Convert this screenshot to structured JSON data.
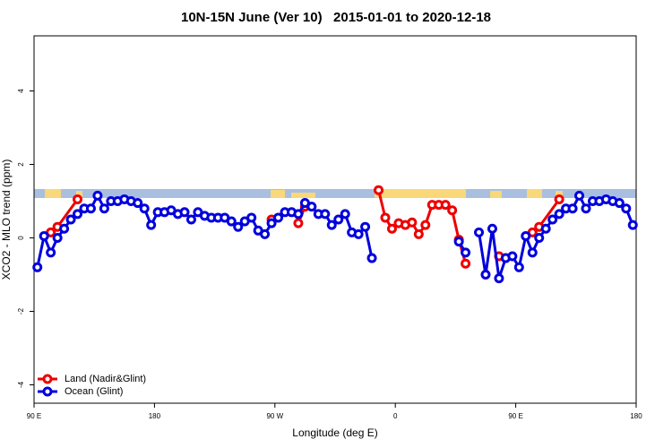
{
  "chart_data": {
    "type": "line",
    "title": "10N-15N June (Ver 10)   2015-01-01 to 2020-12-18",
    "x_label": "Longitude (deg E)",
    "y_label": "XCO2 - MLO trend (ppm)",
    "xlim": [
      90,
      540
    ],
    "ylim": [
      -4.5,
      5.5
    ],
    "xticks": [
      {
        "value": 90,
        "label": "90 E"
      },
      {
        "value": 180,
        "label": "180"
      },
      {
        "value": 270,
        "label": "90 W"
      },
      {
        "value": 360,
        "label": "0"
      },
      {
        "value": 450,
        "label": "90 E"
      },
      {
        "value": 540,
        "label": "180"
      }
    ],
    "yticks": [
      -4,
      -2,
      0,
      2,
      4
    ],
    "legend": "bottom-left",
    "series": [
      {
        "name": "Land (Nadir&Glint)",
        "color": "#ee0000",
        "x": [
          102.5,
          107.5,
          122.5,
          127.5,
          267.5,
          272.5,
          287.5,
          292.5,
          297.5,
          347.5,
          352.5,
          357.5,
          362.5,
          367.5,
          372.5,
          377.5,
          382.5,
          387.5,
          392.5,
          397.5,
          402.5,
          407.5,
          412.5,
          417.5,
          437.5,
          442.5,
          462.5,
          467.5,
          482.5
        ],
        "values": [
          0.15,
          0.3,
          1.05,
          null,
          0.5,
          null,
          0.4,
          0.85,
          null,
          1.3,
          0.55,
          0.25,
          0.4,
          0.35,
          0.42,
          0.1,
          0.35,
          0.9,
          0.9,
          0.9,
          0.75,
          -0.05,
          -0.7,
          null,
          -0.5,
          null,
          0.15,
          0.3,
          1.05
        ]
      },
      {
        "name": "Ocean (Glint)",
        "color": "#0000dd",
        "x": [
          92.5,
          97.5,
          102.5,
          107.5,
          112.5,
          117.5,
          122.5,
          127.5,
          132.5,
          137.5,
          142.5,
          147.5,
          152.5,
          157.5,
          162.5,
          167.5,
          172.5,
          177.5,
          182.5,
          187.5,
          192.5,
          197.5,
          202.5,
          207.5,
          212.5,
          217.5,
          222.5,
          227.5,
          232.5,
          237.5,
          242.5,
          247.5,
          252.5,
          257.5,
          262.5,
          267.5,
          272.5,
          277.5,
          282.5,
          287.5,
          292.5,
          297.5,
          302.5,
          307.5,
          312.5,
          317.5,
          322.5,
          327.5,
          332.5,
          337.5,
          342.5,
          347.5,
          407.5,
          412.5,
          417.5,
          422.5,
          427.5,
          432.5,
          437.5,
          442.5,
          447.5,
          452.5,
          457.5,
          462.5,
          467.5,
          472.5,
          477.5,
          482.5,
          487.5,
          492.5,
          497.5,
          502.5,
          507.5,
          512.5,
          517.5,
          522.5,
          527.5,
          532.5,
          537.5
        ],
        "values": [
          -0.8,
          0.05,
          -0.4,
          0,
          0.25,
          0.5,
          0.65,
          0.8,
          0.8,
          1.15,
          0.8,
          1.0,
          1.0,
          1.05,
          1.0,
          0.95,
          0.8,
          0.35,
          0.7,
          0.7,
          0.75,
          0.65,
          0.7,
          0.5,
          0.7,
          0.6,
          0.55,
          0.55,
          0.55,
          0.45,
          0.3,
          0.45,
          0.55,
          0.2,
          0.1,
          0.4,
          0.55,
          0.7,
          0.7,
          0.65,
          0.95,
          0.85,
          0.65,
          0.65,
          0.35,
          0.5,
          0.65,
          0.15,
          0.1,
          0.3,
          -0.55,
          null,
          -0.1,
          -0.4,
          null,
          0.15,
          -1.0,
          0.25,
          -1.1,
          -0.55,
          -0.5,
          -0.8,
          0.05,
          -0.4,
          0,
          0.25,
          0.5,
          0.65,
          0.8,
          0.8,
          1.15,
          0.8,
          1.0,
          1.0,
          1.05,
          1.0,
          0.95,
          0.8,
          0.35
        ]
      }
    ]
  }
}
